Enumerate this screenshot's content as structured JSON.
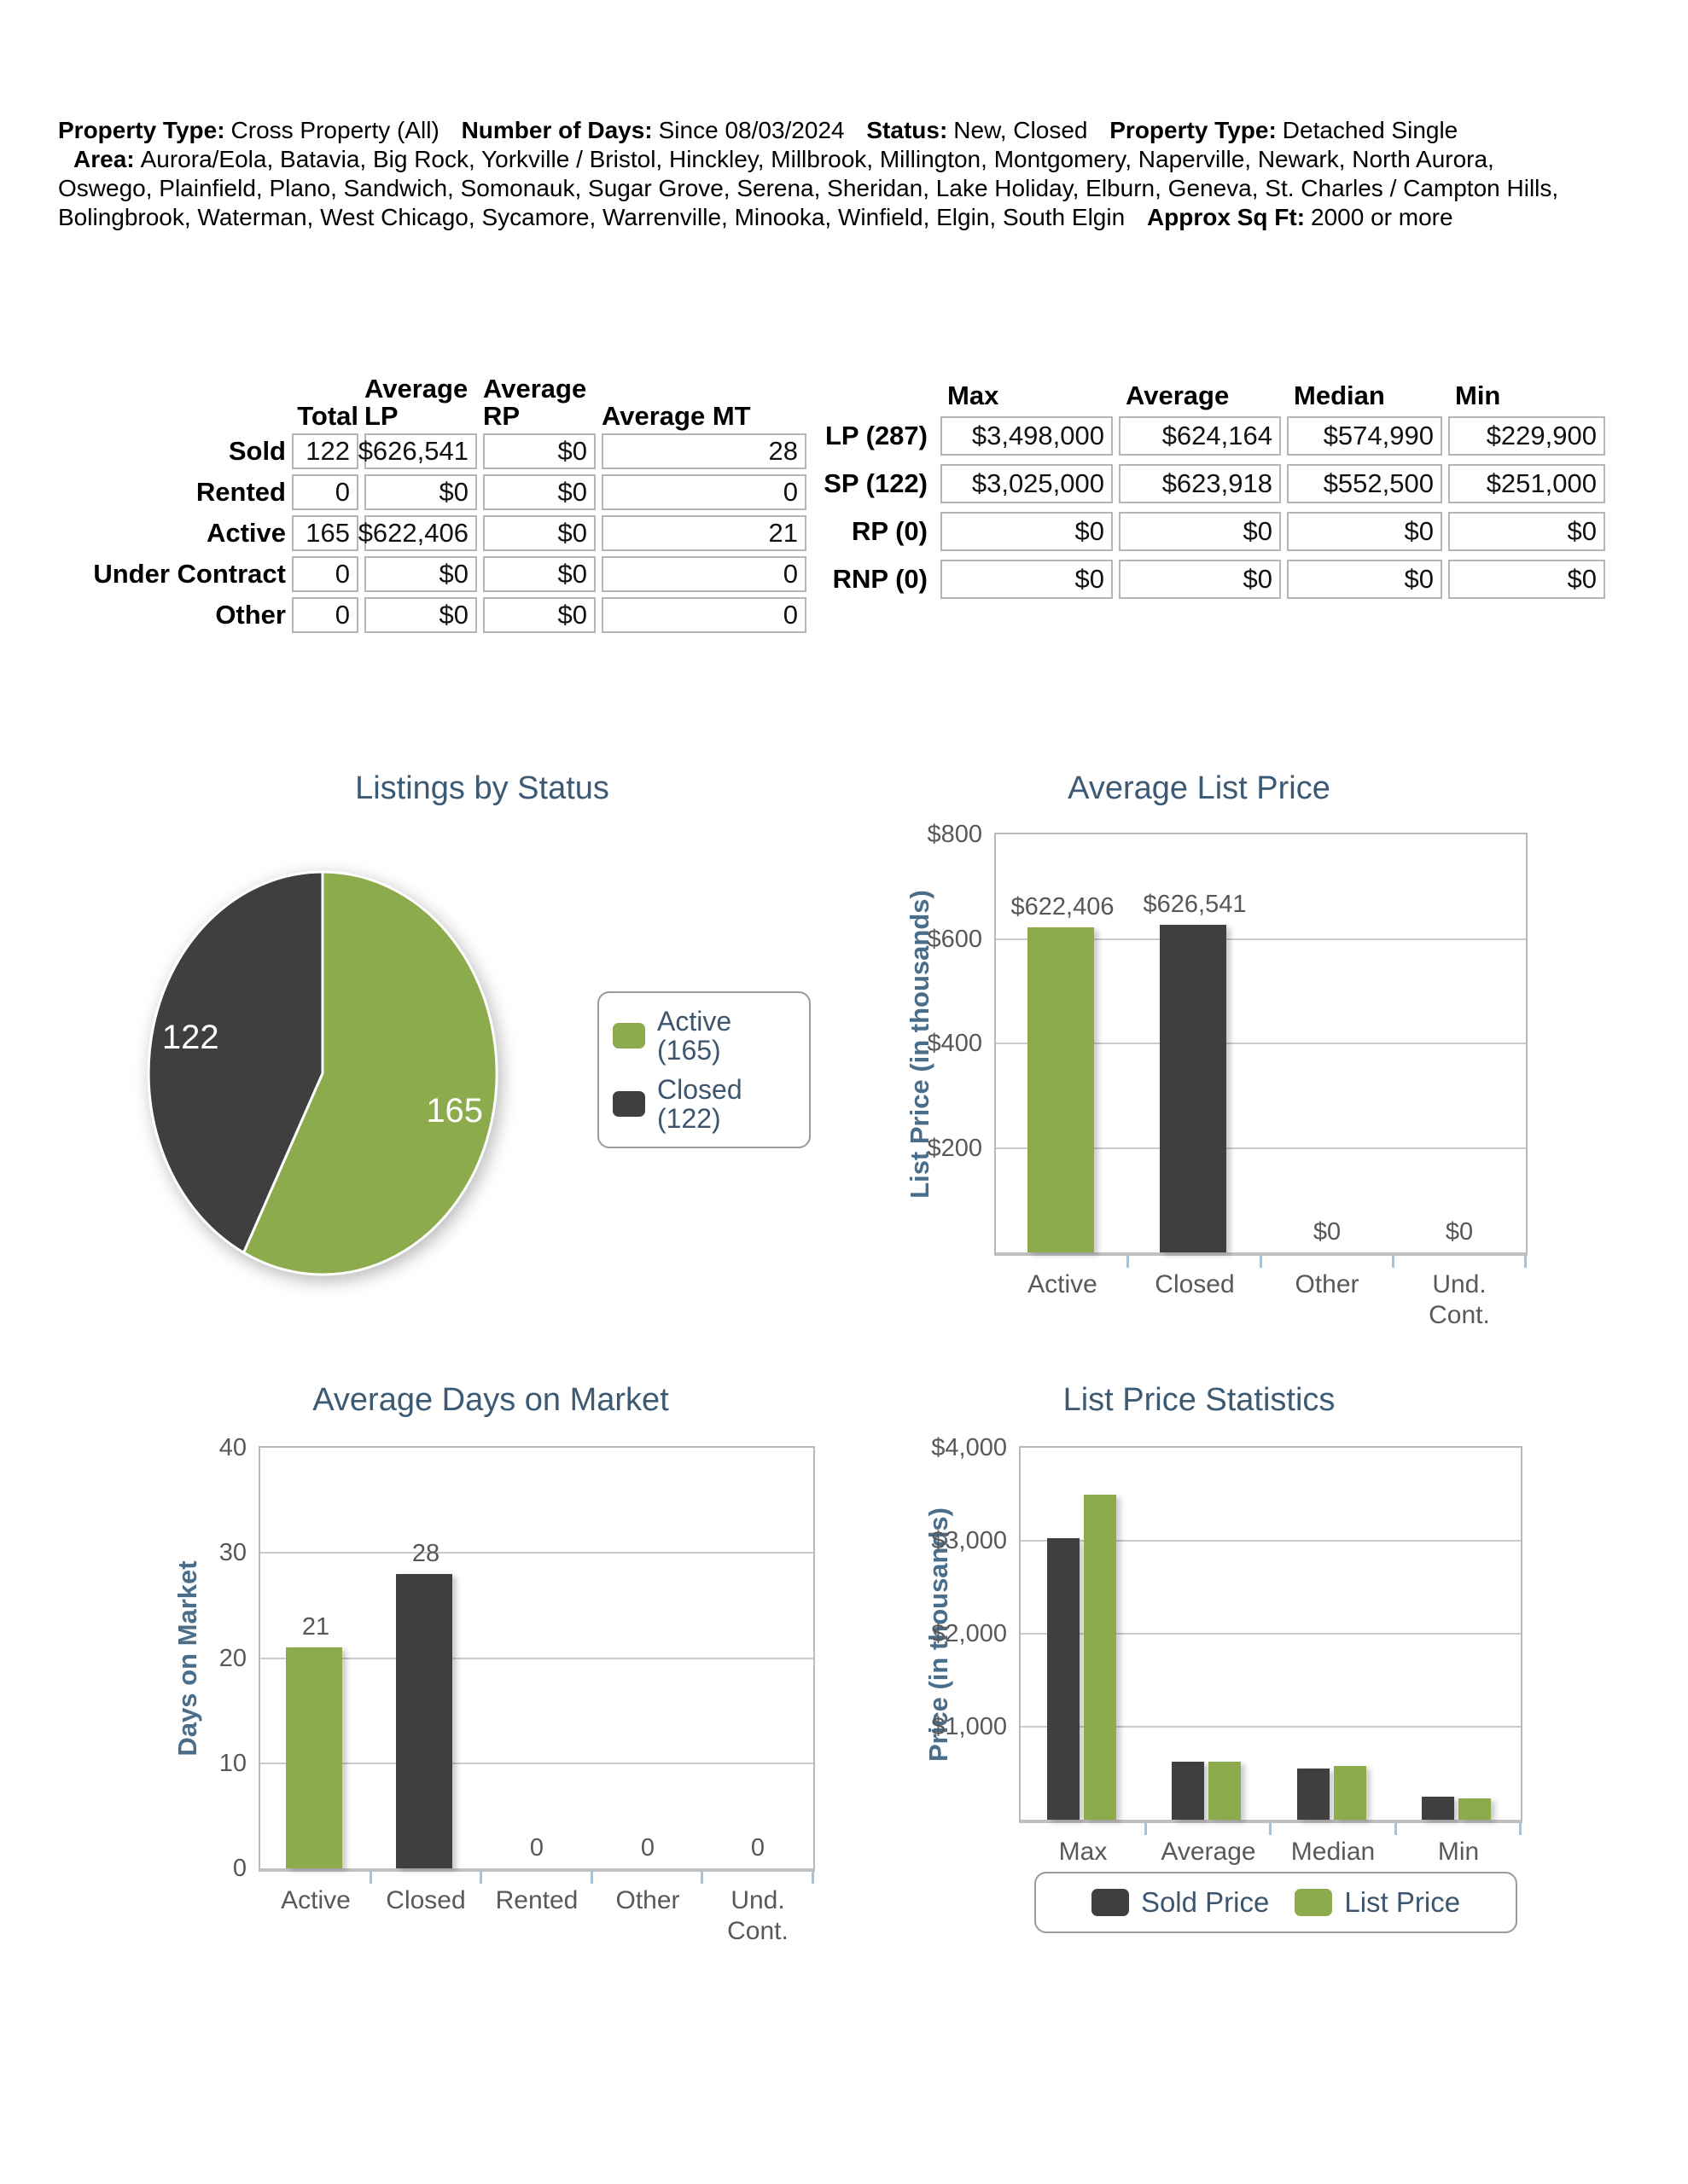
{
  "colors": {
    "green": "#8BAB4C",
    "dark": "#3F3F3F",
    "title_slate": "#3C5A73",
    "axis_slate": "#4A6D8A",
    "label_gray": "#57595B",
    "grid_gray": "#CBCBCB",
    "tick_blue": "#A9C3D6"
  },
  "header": {
    "segments": [
      {
        "label": "Property Type:",
        "text": "Cross Property (All)"
      },
      {
        "label": "Number of Days:",
        "text": "Since 08/03/2024"
      },
      {
        "label": "Status:",
        "text": "New, Closed"
      },
      {
        "label": "Property Type:",
        "text": "Detached Single"
      },
      {
        "label": "Area:",
        "text": "Aurora/Eola, Batavia, Big Rock, Yorkville / Bristol, Hinckley, Millbrook, Millington, Montgomery, Naperville, Newark, North Aurora, Oswego, Plainfield, Plano, Sandwich, Somonauk, Sugar Grove, Serena, Sheridan, Lake Holiday, Elburn, Geneva, St. Charles / Campton Hills, Bolingbrook, Waterman, West Chicago, Sycamore, Warrenville, Minooka, Winfield, Elgin, South Elgin"
      },
      {
        "label": "Approx Sq Ft:",
        "text": "2000 or more"
      }
    ]
  },
  "status_table": {
    "col_headers": [
      "Total",
      "Average LP",
      "Average RP",
      "Average MT"
    ],
    "rows": [
      {
        "label": "Sold",
        "values": [
          "122",
          "$626,541",
          "$0",
          "28"
        ]
      },
      {
        "label": "Rented",
        "values": [
          "0",
          "$0",
          "$0",
          "0"
        ]
      },
      {
        "label": "Active",
        "values": [
          "165",
          "$622,406",
          "$0",
          "21"
        ]
      },
      {
        "label": "Under Contract",
        "values": [
          "0",
          "$0",
          "$0",
          "0"
        ]
      },
      {
        "label": "Other",
        "values": [
          "0",
          "$0",
          "$0",
          "0"
        ]
      }
    ]
  },
  "price_table": {
    "col_headers": [
      "Max",
      "Average",
      "Median",
      "Min"
    ],
    "rows": [
      {
        "label": "LP (287)",
        "values": [
          "$3,498,000",
          "$624,164",
          "$574,990",
          "$229,900"
        ]
      },
      {
        "label": "SP (122)",
        "values": [
          "$3,025,000",
          "$623,918",
          "$552,500",
          "$251,000"
        ]
      },
      {
        "label": "RP (0)",
        "values": [
          "$0",
          "$0",
          "$0",
          "$0"
        ]
      },
      {
        "label": "RNP (0)",
        "values": [
          "$0",
          "$0",
          "$0",
          "$0"
        ]
      }
    ]
  },
  "chart_data": [
    {
      "type": "pie",
      "title": "Listings by Status",
      "slices": [
        {
          "label": "Active (165)",
          "value": 165,
          "color": "green",
          "data_label": "165"
        },
        {
          "label": "Closed (122)",
          "value": 122,
          "color": "dark",
          "data_label": "122"
        }
      ],
      "legend_position": "right"
    },
    {
      "type": "bar",
      "title": "Average List Price",
      "ylabel": "List Price (in thousands)",
      "ylim": [
        0,
        800
      ],
      "grid": true,
      "yticks": [
        {
          "v": 800,
          "label": "$800"
        },
        {
          "v": 600,
          "label": "$600"
        },
        {
          "v": 400,
          "label": "$400"
        },
        {
          "v": 200,
          "label": "$200"
        }
      ],
      "categories": [
        "Active",
        "Closed",
        "Other",
        "Und. Cont."
      ],
      "values": [
        622.406,
        626.541,
        0,
        0
      ],
      "value_labels": [
        "$622,406",
        "$626,541",
        "$0",
        "$0"
      ],
      "bar_colors": [
        "green",
        "dark",
        "green",
        "dark"
      ]
    },
    {
      "type": "bar",
      "title": "Average Days on Market",
      "ylabel": "Days on Market",
      "ylim": [
        0,
        40
      ],
      "grid": true,
      "yticks": [
        {
          "v": 40,
          "label": "40"
        },
        {
          "v": 30,
          "label": "30"
        },
        {
          "v": 20,
          "label": "20"
        },
        {
          "v": 10,
          "label": "10"
        },
        {
          "v": 0,
          "label": "0"
        }
      ],
      "categories": [
        "Active",
        "Closed",
        "Rented",
        "Other",
        "Und. Cont."
      ],
      "values": [
        21,
        28,
        0,
        0,
        0
      ],
      "value_labels": [
        "21",
        "28",
        "0",
        "0",
        "0"
      ],
      "bar_colors": [
        "green",
        "dark",
        "green",
        "dark",
        "green"
      ]
    },
    {
      "type": "grouped_bar",
      "title": "List Price Statistics",
      "ylabel": "Price (in thousands)",
      "ylim": [
        0,
        4000
      ],
      "grid": true,
      "legend_position": "bottom",
      "yticks": [
        {
          "v": 4000,
          "label": "$4,000"
        },
        {
          "v": 3000,
          "label": "$3,000"
        },
        {
          "v": 2000,
          "label": "$2,000"
        },
        {
          "v": 1000,
          "label": "$1,000"
        }
      ],
      "categories": [
        "Max",
        "Average",
        "Median",
        "Min"
      ],
      "series": [
        {
          "name": "Sold Price",
          "color": "dark",
          "values": [
            3025,
            623.918,
            552.5,
            251
          ]
        },
        {
          "name": "List Price",
          "color": "green",
          "values": [
            3498,
            624.164,
            574.99,
            229.9
          ]
        }
      ]
    }
  ]
}
